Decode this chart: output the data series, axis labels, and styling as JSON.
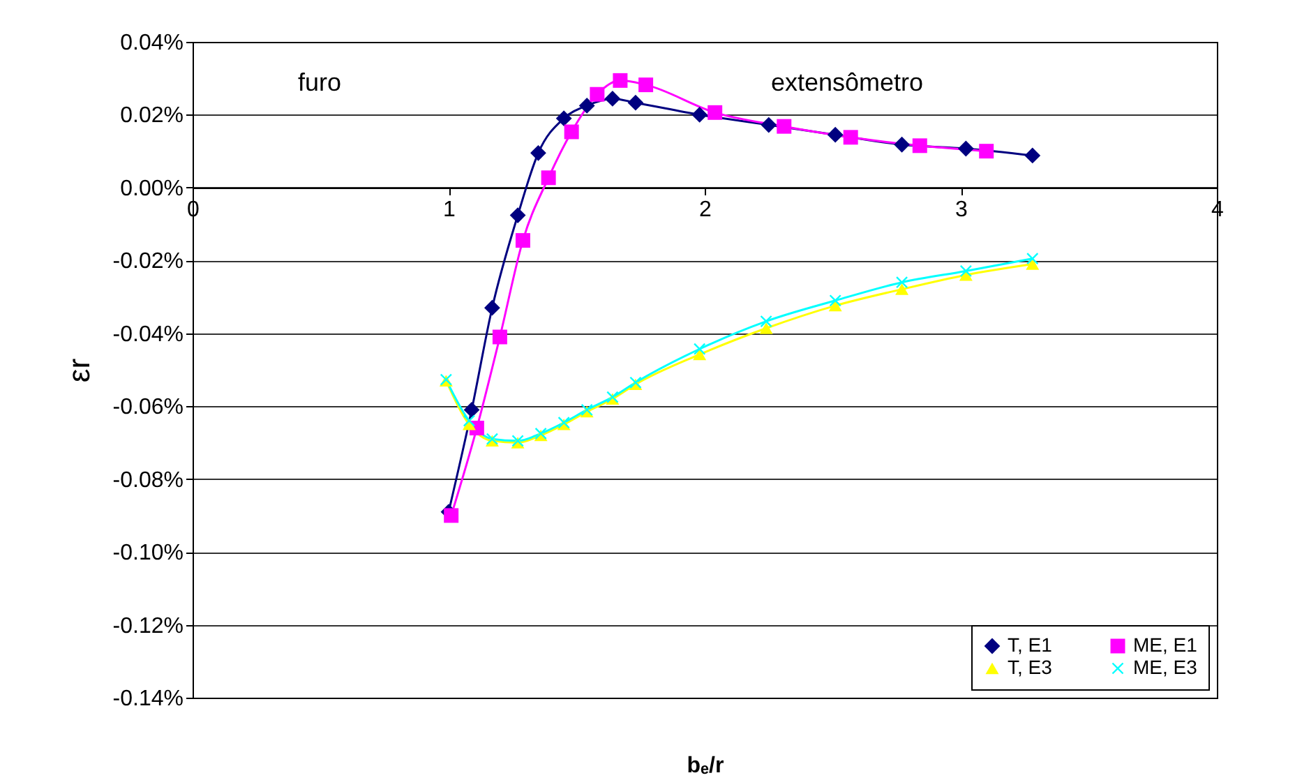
{
  "chart_data": {
    "type": "line",
    "xlabel": "bₑ/r",
    "ylabel": "εr",
    "xlim": [
      0,
      4
    ],
    "xticks": [
      0,
      1,
      2,
      3,
      4
    ],
    "ylim": [
      -0.14,
      0.04
    ],
    "yticks": [
      {
        "value": -0.14,
        "label": "-0.14%"
      },
      {
        "value": -0.12,
        "label": "-0.12%"
      },
      {
        "value": -0.1,
        "label": "-0.10%"
      },
      {
        "value": -0.08,
        "label": "-0.08%"
      },
      {
        "value": -0.06,
        "label": "-0.06%"
      },
      {
        "value": -0.04,
        "label": "-0.04%"
      },
      {
        "value": -0.02,
        "label": "-0.02%"
      },
      {
        "value": 0,
        "label": "0.00%"
      },
      {
        "value": 0.02,
        "label": "0.02%"
      },
      {
        "value": 0.04,
        "label": "0.04%"
      }
    ],
    "grid": "y",
    "legend": "bottom right",
    "line_style": "solid",
    "annotations": [
      "furo",
      "extensômetro"
    ],
    "series": [
      {
        "name": "T, E1",
        "color": "#000080",
        "marker": "diamond",
        "x": [
          1.0,
          1.09,
          1.17,
          1.27,
          1.35,
          1.45,
          1.54,
          1.64,
          1.73,
          1.98,
          2.25,
          2.51,
          2.77,
          3.02,
          3.28
        ],
        "values": [
          -0.089,
          -0.061,
          -0.033,
          -0.0076,
          0.0095,
          0.019,
          0.0225,
          0.0244,
          0.0233,
          0.02,
          0.0172,
          0.0145,
          0.0118,
          0.0107,
          0.0088
        ]
      },
      {
        "name": "ME, E1",
        "color": "#ff00ff",
        "marker": "square",
        "x": [
          1.01,
          1.11,
          1.2,
          1.29,
          1.39,
          1.48,
          1.58,
          1.67,
          1.77,
          2.04,
          2.31,
          2.57,
          2.84,
          3.1
        ],
        "values": [
          -0.09,
          -0.066,
          -0.041,
          -0.0145,
          0.0027,
          0.0153,
          0.0256,
          0.0294,
          0.0282,
          0.0206,
          0.0168,
          0.0138,
          0.0115,
          0.01
        ]
      },
      {
        "name": "T, E3",
        "color": "#ffff00",
        "marker": "triangle",
        "x": [
          0.99,
          1.08,
          1.17,
          1.27,
          1.36,
          1.45,
          1.54,
          1.64,
          1.73,
          1.98,
          2.24,
          2.51,
          2.77,
          3.02,
          3.28
        ],
        "values": [
          -0.053,
          -0.065,
          -0.0695,
          -0.07,
          -0.068,
          -0.065,
          -0.0615,
          -0.058,
          -0.054,
          -0.0458,
          -0.0386,
          -0.0324,
          -0.0279,
          -0.024,
          -0.021
        ]
      },
      {
        "name": "ME, E3",
        "color": "#00ffff",
        "marker": "cross",
        "x": [
          0.99,
          1.08,
          1.17,
          1.27,
          1.36,
          1.45,
          1.54,
          1.64,
          1.73,
          1.98,
          2.24,
          2.51,
          2.77,
          3.02,
          3.28
        ],
        "values": [
          -0.0527,
          -0.064,
          -0.069,
          -0.0695,
          -0.0675,
          -0.0645,
          -0.061,
          -0.0575,
          -0.0535,
          -0.0443,
          -0.0367,
          -0.031,
          -0.026,
          -0.0229,
          -0.0195
        ]
      }
    ]
  }
}
